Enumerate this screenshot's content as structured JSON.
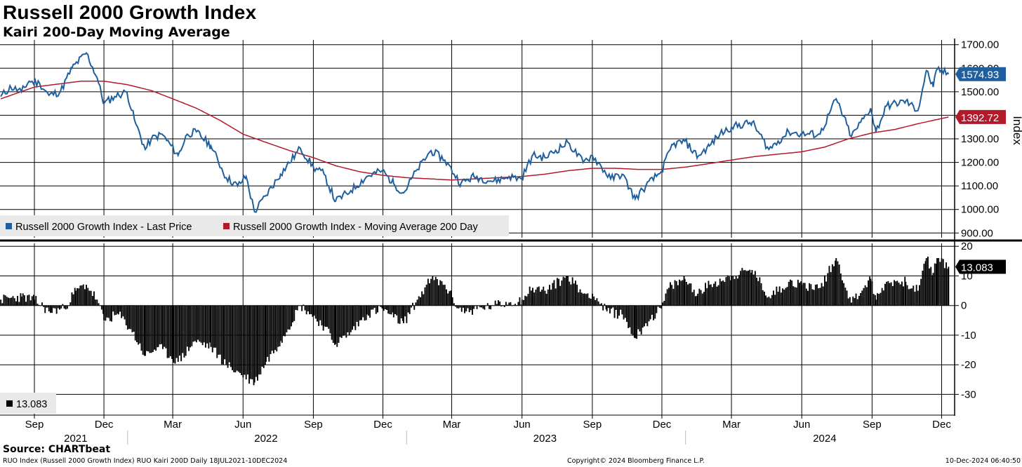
{
  "header": {
    "title": "Russell 2000 Growth Index",
    "subtitle": "Kairi 200-Day Moving Average"
  },
  "footer": {
    "source": "Source: CHARTbeat",
    "left": "RUO Index (Russell 2000 Growth Index) RUO Kairi 200D  Daily 18JUL2021-10DEC2024",
    "center": "Copyright© 2024 Bloomberg Finance L.P.",
    "right": "10-Dec-2024 06:40:50"
  },
  "colors": {
    "price": "#1f5f9e",
    "ma": "#b11a2b",
    "kairi": "#000000",
    "grid": "#000000"
  },
  "chart_data": [
    {
      "type": "line",
      "title": "Russell 2000 Growth Index",
      "ylabel": "Index",
      "ylim": [
        880,
        1720
      ],
      "yticks": [
        900,
        1000,
        1100,
        1200,
        1300,
        1400,
        1500,
        1600,
        1700
      ],
      "ytick_labels": [
        "900.00",
        "1000.00",
        "1100.00",
        "1200.00",
        "1300.00",
        "1400.00",
        "1500.00",
        "1600.00",
        "1700.00"
      ],
      "legend": "bottom-left",
      "series": [
        {
          "name": "Russell 2000 Growth Index - Last Price",
          "color": "#1f5f9e",
          "last_label": "1574.93",
          "points": [
            [
              "2021-07-19",
              1480
            ],
            [
              "2021-08-01",
              1520
            ],
            [
              "2021-08-15",
              1500
            ],
            [
              "2021-08-25",
              1545
            ],
            [
              "2021-09-08",
              1535
            ],
            [
              "2021-09-20",
              1485
            ],
            [
              "2021-10-05",
              1500
            ],
            [
              "2021-10-20",
              1600
            ],
            [
              "2021-11-08",
              1665
            ],
            [
              "2021-11-22",
              1560
            ],
            [
              "2021-12-01",
              1450
            ],
            [
              "2021-12-15",
              1480
            ],
            [
              "2021-12-31",
              1500
            ],
            [
              "2022-01-10",
              1380
            ],
            [
              "2022-01-24",
              1255
            ],
            [
              "2022-02-01",
              1300
            ],
            [
              "2022-02-15",
              1320
            ],
            [
              "2022-03-08",
              1230
            ],
            [
              "2022-03-20",
              1320
            ],
            [
              "2022-04-01",
              1330
            ],
            [
              "2022-04-20",
              1270
            ],
            [
              "2022-05-10",
              1135
            ],
            [
              "2022-05-25",
              1100
            ],
            [
              "2022-06-05",
              1140
            ],
            [
              "2022-06-16",
              990
            ],
            [
              "2022-07-01",
              1060
            ],
            [
              "2022-07-20",
              1150
            ],
            [
              "2022-08-15",
              1260
            ],
            [
              "2022-09-01",
              1180
            ],
            [
              "2022-09-15",
              1150
            ],
            [
              "2022-09-30",
              1035
            ],
            [
              "2022-10-20",
              1080
            ],
            [
              "2022-11-10",
              1140
            ],
            [
              "2022-11-30",
              1165
            ],
            [
              "2022-12-15",
              1110
            ],
            [
              "2022-12-28",
              1070
            ],
            [
              "2023-01-15",
              1170
            ],
            [
              "2023-02-02",
              1250
            ],
            [
              "2023-02-20",
              1210
            ],
            [
              "2023-03-13",
              1110
            ],
            [
              "2023-03-30",
              1140
            ],
            [
              "2023-04-25",
              1120
            ],
            [
              "2023-05-15",
              1140
            ],
            [
              "2023-05-31",
              1130
            ],
            [
              "2023-06-15",
              1230
            ],
            [
              "2023-07-01",
              1220
            ],
            [
              "2023-07-31",
              1285
            ],
            [
              "2023-08-20",
              1200
            ],
            [
              "2023-09-01",
              1230
            ],
            [
              "2023-09-25",
              1130
            ],
            [
              "2023-10-10",
              1150
            ],
            [
              "2023-10-27",
              1045
            ],
            [
              "2023-11-10",
              1100
            ],
            [
              "2023-11-30",
              1160
            ],
            [
              "2023-12-15",
              1275
            ],
            [
              "2023-12-31",
              1290
            ],
            [
              "2024-01-17",
              1225
            ],
            [
              "2024-02-01",
              1270
            ],
            [
              "2024-02-15",
              1320
            ],
            [
              "2024-03-01",
              1350
            ],
            [
              "2024-03-28",
              1370
            ],
            [
              "2024-04-19",
              1255
            ],
            [
              "2024-05-15",
              1330
            ],
            [
              "2024-06-01",
              1320
            ],
            [
              "2024-06-25",
              1320
            ],
            [
              "2024-07-16",
              1470
            ],
            [
              "2024-08-05",
              1310
            ],
            [
              "2024-08-30",
              1430
            ],
            [
              "2024-09-06",
              1330
            ],
            [
              "2024-09-20",
              1440
            ],
            [
              "2024-10-15",
              1460
            ],
            [
              "2024-10-31",
              1420
            ],
            [
              "2024-11-11",
              1590
            ],
            [
              "2024-11-20",
              1520
            ],
            [
              "2024-11-25",
              1595
            ],
            [
              "2024-12-10",
              1574.93
            ]
          ]
        },
        {
          "name": "Russell 2000 Growth Index - Moving Average 200 Day",
          "color": "#b11a2b",
          "last_label": "1392.72",
          "points": [
            [
              "2021-07-19",
              1470
            ],
            [
              "2021-09-01",
              1520
            ],
            [
              "2021-11-01",
              1545
            ],
            [
              "2021-12-01",
              1545
            ],
            [
              "2022-01-01",
              1530
            ],
            [
              "2022-02-01",
              1505
            ],
            [
              "2022-03-01",
              1470
            ],
            [
              "2022-04-01",
              1430
            ],
            [
              "2022-05-01",
              1380
            ],
            [
              "2022-06-01",
              1320
            ],
            [
              "2022-07-01",
              1285
            ],
            [
              "2022-08-01",
              1250
            ],
            [
              "2022-09-01",
              1220
            ],
            [
              "2022-10-01",
              1185
            ],
            [
              "2022-11-01",
              1160
            ],
            [
              "2022-12-01",
              1145
            ],
            [
              "2023-01-01",
              1135
            ],
            [
              "2023-02-01",
              1130
            ],
            [
              "2023-03-01",
              1125
            ],
            [
              "2023-04-01",
              1130
            ],
            [
              "2023-05-01",
              1135
            ],
            [
              "2023-06-01",
              1140
            ],
            [
              "2023-07-01",
              1150
            ],
            [
              "2023-08-01",
              1165
            ],
            [
              "2023-09-01",
              1175
            ],
            [
              "2023-10-01",
              1175
            ],
            [
              "2023-11-01",
              1170
            ],
            [
              "2023-12-01",
              1170
            ],
            [
              "2024-01-01",
              1180
            ],
            [
              "2024-02-01",
              1195
            ],
            [
              "2024-03-01",
              1210
            ],
            [
              "2024-04-01",
              1225
            ],
            [
              "2024-05-01",
              1235
            ],
            [
              "2024-06-01",
              1245
            ],
            [
              "2024-07-01",
              1265
            ],
            [
              "2024-08-01",
              1300
            ],
            [
              "2024-09-01",
              1325
            ],
            [
              "2024-10-01",
              1340
            ],
            [
              "2024-11-01",
              1365
            ],
            [
              "2024-12-10",
              1392.72
            ]
          ]
        }
      ]
    },
    {
      "type": "bar",
      "title": "RUO Kairi 200D",
      "ylabel": "",
      "ylim": [
        -37,
        21
      ],
      "yticks": [
        -30,
        -20,
        -10,
        0,
        10,
        20
      ],
      "ytick_labels": [
        "-30",
        "-20",
        "-10",
        "0",
        "10",
        "20"
      ],
      "legend": "bottom-left",
      "series": [
        {
          "name": "13.083",
          "color": "#000000",
          "last_label": "13.083",
          "points": [
            [
              "2021-07-19",
              2
            ],
            [
              "2021-08-15",
              3
            ],
            [
              "2021-09-01",
              2
            ],
            [
              "2021-09-20",
              -2
            ],
            [
              "2021-10-10",
              -1
            ],
            [
              "2021-10-25",
              5
            ],
            [
              "2021-11-08",
              7
            ],
            [
              "2021-11-22",
              2
            ],
            [
              "2021-12-01",
              -5
            ],
            [
              "2021-12-20",
              -3
            ],
            [
              "2022-01-05",
              -8
            ],
            [
              "2022-01-24",
              -17
            ],
            [
              "2022-02-10",
              -14
            ],
            [
              "2022-03-08",
              -19
            ],
            [
              "2022-03-30",
              -12
            ],
            [
              "2022-04-20",
              -14
            ],
            [
              "2022-05-10",
              -20
            ],
            [
              "2022-06-16",
              -26
            ],
            [
              "2022-07-01",
              -19
            ],
            [
              "2022-07-20",
              -12
            ],
            [
              "2022-08-15",
              0
            ],
            [
              "2022-08-25",
              -2
            ],
            [
              "2022-09-15",
              -7
            ],
            [
              "2022-09-30",
              -13
            ],
            [
              "2022-10-20",
              -9
            ],
            [
              "2022-11-10",
              -3
            ],
            [
              "2022-11-30",
              -1
            ],
            [
              "2022-12-15",
              -4
            ],
            [
              "2022-12-28",
              -6
            ],
            [
              "2023-01-15",
              2
            ],
            [
              "2023-02-02",
              9
            ],
            [
              "2023-02-20",
              7
            ],
            [
              "2023-03-10",
              -1
            ],
            [
              "2023-03-20",
              -2
            ],
            [
              "2023-04-25",
              0
            ],
            [
              "2023-05-15",
              1
            ],
            [
              "2023-06-01",
              2
            ],
            [
              "2023-06-15",
              6
            ],
            [
              "2023-07-01",
              5
            ],
            [
              "2023-07-31",
              10
            ],
            [
              "2023-08-20",
              4
            ],
            [
              "2023-09-01",
              4
            ],
            [
              "2023-09-20",
              -2
            ],
            [
              "2023-10-10",
              -3
            ],
            [
              "2023-10-27",
              -11
            ],
            [
              "2023-11-10",
              -6
            ],
            [
              "2023-11-30",
              -1
            ],
            [
              "2023-12-10",
              6
            ],
            [
              "2023-12-31",
              9
            ],
            [
              "2024-01-17",
              4
            ],
            [
              "2024-02-01",
              7
            ],
            [
              "2024-03-01",
              10
            ],
            [
              "2024-03-28",
              12
            ],
            [
              "2024-04-19",
              3
            ],
            [
              "2024-05-15",
              8
            ],
            [
              "2024-06-01",
              7
            ],
            [
              "2024-06-25",
              6
            ],
            [
              "2024-07-16",
              16
            ],
            [
              "2024-08-05",
              1
            ],
            [
              "2024-08-30",
              9
            ],
            [
              "2024-09-06",
              2
            ],
            [
              "2024-09-20",
              8
            ],
            [
              "2024-10-15",
              8
            ],
            [
              "2024-10-31",
              5
            ],
            [
              "2024-11-11",
              16
            ],
            [
              "2024-11-20",
              11
            ],
            [
              "2024-11-25",
              16
            ],
            [
              "2024-12-10",
              13.083
            ]
          ]
        }
      ]
    }
  ],
  "x_axis": {
    "months": [
      {
        "label": "Sep",
        "date": "2021-09-01"
      },
      {
        "label": "Dec",
        "date": "2021-12-01"
      },
      {
        "label": "Mar",
        "date": "2022-03-01"
      },
      {
        "label": "Jun",
        "date": "2022-06-01"
      },
      {
        "label": "Sep",
        "date": "2022-09-01"
      },
      {
        "label": "Dec",
        "date": "2022-12-01"
      },
      {
        "label": "Mar",
        "date": "2023-03-01"
      },
      {
        "label": "Jun",
        "date": "2023-06-01"
      },
      {
        "label": "Sep",
        "date": "2023-09-01"
      },
      {
        "label": "Dec",
        "date": "2023-12-01"
      },
      {
        "label": "Mar",
        "date": "2024-03-01"
      },
      {
        "label": "Jun",
        "date": "2024-06-01"
      },
      {
        "label": "Sep",
        "date": "2024-09-01"
      },
      {
        "label": "Dec",
        "date": "2024-12-01"
      }
    ],
    "years": [
      {
        "label": "2021",
        "date": "2021-10-25"
      },
      {
        "label": "2022",
        "date": "2022-07-01"
      },
      {
        "label": "2023",
        "date": "2023-07-01"
      },
      {
        "label": "2024",
        "date": "2024-07-01"
      }
    ],
    "year_dividers": [
      "2022-01-01",
      "2023-01-01",
      "2024-01-01"
    ],
    "range": [
      "2021-07-18",
      "2024-12-18"
    ]
  }
}
